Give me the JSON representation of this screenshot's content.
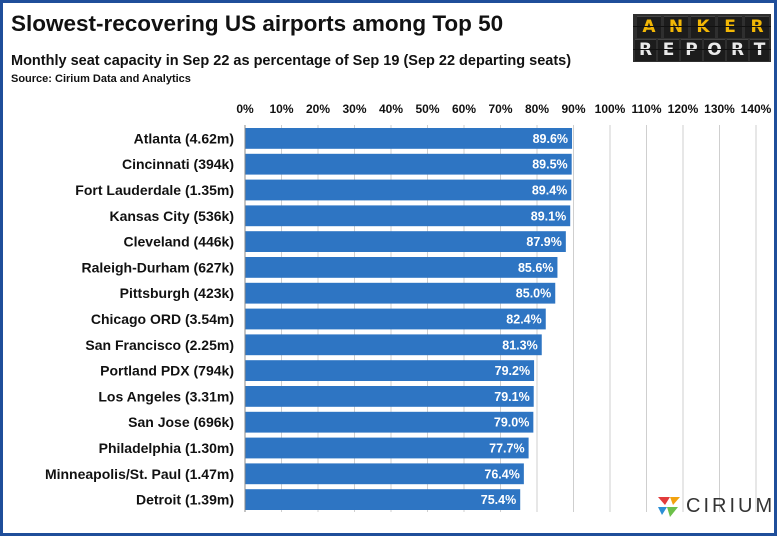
{
  "header": {
    "title": "Slowest-recovering US airports among Top 50",
    "subtitle": "Monthly seat capacity in Sep 22 as percentage of Sep 19 (Sep 22 departing seats)",
    "source": "Source: Cirium Data and Analytics"
  },
  "logos": {
    "anker_top": [
      "A",
      "N",
      "K",
      "E",
      "R"
    ],
    "anker_bottom": [
      "R",
      "E",
      "P",
      "O",
      "R",
      "T"
    ],
    "cirium_text": "CIRIUM"
  },
  "colors": {
    "bar": "#2e75c3",
    "frame": "#1f4e9a"
  },
  "chart_data": {
    "type": "bar",
    "orientation": "horizontal",
    "categories": [
      "Atlanta (4.62m)",
      "Cincinnati (394k)",
      "Fort Lauderdale (1.35m)",
      "Kansas City (536k)",
      "Cleveland (446k)",
      "Raleigh-Durham (627k)",
      "Pittsburgh (423k)",
      "Chicago ORD (3.54m)",
      "San Francisco (2.25m)",
      "Portland PDX (794k)",
      "Los Angeles (3.31m)",
      "San Jose (696k)",
      "Philadelphia (1.30m)",
      "Minneapolis/St. Paul (1.47m)",
      "Detroit (1.39m)"
    ],
    "values": [
      89.6,
      89.5,
      89.4,
      89.1,
      87.9,
      85.6,
      85.0,
      82.4,
      81.3,
      79.2,
      79.1,
      79.0,
      77.7,
      76.4,
      75.4
    ],
    "data_labels": [
      "89.6%",
      "89.5%",
      "89.4%",
      "89.1%",
      "87.9%",
      "85.6%",
      "85.0%",
      "82.4%",
      "81.3%",
      "79.2%",
      "79.1%",
      "79.0%",
      "77.7%",
      "76.4%",
      "75.4%"
    ],
    "xlim": [
      0,
      140
    ],
    "x_ticks": [
      "0%",
      "10%",
      "20%",
      "30%",
      "40%",
      "50%",
      "60%",
      "70%",
      "80%",
      "90%",
      "100%",
      "110%",
      "120%",
      "130%",
      "140%"
    ],
    "x_axis_position": "top",
    "grid": true
  }
}
